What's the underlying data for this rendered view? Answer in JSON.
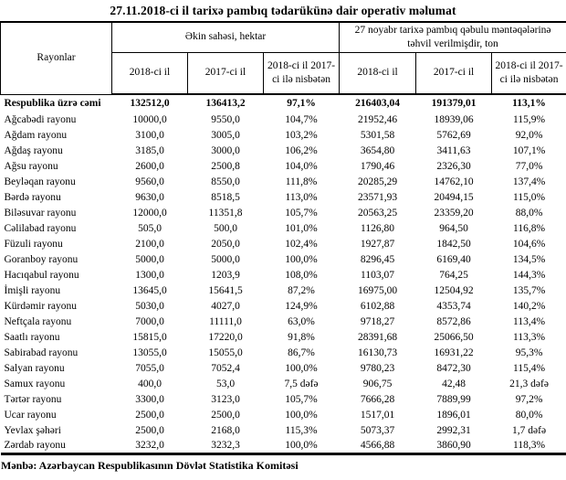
{
  "title": "27.11.2018-ci il tarixə pambıq tədarükünə dair operativ məlumat",
  "source": "Mənbə: Azərbaycan Respublikasının Dövlət Statistika Komitəsi",
  "table": {
    "rayonlar_header": "Rayonlar",
    "group_headers": [
      "Əkin sahəsi, hektar",
      "27 noyabr tarixə pambıq qəbulu məntəqələrinə təhvil verilmişdir, ton"
    ],
    "sub_headers": [
      "2018-ci il",
      "2017-ci il",
      "2018-ci il 2017-ci ilə nisbətən",
      "2018-ci il",
      "2017-ci il",
      "2018-ci il 2017-ci ilə nisbətən"
    ],
    "total_row": [
      "Respublika üzrə cəmi",
      "132512,0",
      "136413,2",
      "97,1%",
      "216403,04",
      "191379,01",
      "113,1%"
    ],
    "rows": [
      [
        "Ağcabədi rayonu",
        "10000,0",
        "9550,0",
        "104,7%",
        "21952,46",
        "18939,06",
        "115,9%"
      ],
      [
        "Ağdam rayonu",
        "3100,0",
        "3005,0",
        "103,2%",
        "5301,58",
        "5762,69",
        "92,0%"
      ],
      [
        "Ağdaş rayonu",
        "3185,0",
        "3000,0",
        "106,2%",
        "3654,80",
        "3411,63",
        "107,1%"
      ],
      [
        "Ağsu rayonu",
        "2600,0",
        "2500,8",
        "104,0%",
        "1790,46",
        "2326,30",
        "77,0%"
      ],
      [
        "Beyləqan rayonu",
        "9560,0",
        "8550,0",
        "111,8%",
        "20285,29",
        "14762,10",
        "137,4%"
      ],
      [
        "Bərdə rayonu",
        "9630,0",
        "8518,5",
        "113,0%",
        "23571,93",
        "20494,15",
        "115,0%"
      ],
      [
        "Biləsuvar rayonu",
        "12000,0",
        "11351,8",
        "105,7%",
        "20563,25",
        "23359,20",
        "88,0%"
      ],
      [
        "Cəlilabad rayonu",
        "505,0",
        "500,0",
        "101,0%",
        "1126,80",
        "964,50",
        "116,8%"
      ],
      [
        "Füzuli rayonu",
        "2100,0",
        "2050,0",
        "102,4%",
        "1927,87",
        "1842,50",
        "104,6%"
      ],
      [
        "Goranboy rayonu",
        "5000,0",
        "5000,0",
        "100,0%",
        "8296,45",
        "6169,40",
        "134,5%"
      ],
      [
        "Hacıqabul rayonu",
        "1300,0",
        "1203,9",
        "108,0%",
        "1103,07",
        "764,25",
        "144,3%"
      ],
      [
        "İmişli rayonu",
        "13645,0",
        "15641,5",
        "87,2%",
        "16975,00",
        "12504,92",
        "135,7%"
      ],
      [
        "Kürdəmir rayonu",
        "5030,0",
        "4027,0",
        "124,9%",
        "6102,88",
        "4353,74",
        "140,2%"
      ],
      [
        "Neftçala rayonu",
        "7000,0",
        "11111,0",
        "63,0%",
        "9718,27",
        "8572,86",
        "113,4%"
      ],
      [
        "Saatlı rayonu",
        "15815,0",
        "17220,0",
        "91,8%",
        "28391,68",
        "25066,50",
        "113,3%"
      ],
      [
        "Sabirabad rayonu",
        "13055,0",
        "15055,0",
        "86,7%",
        "16130,73",
        "16931,22",
        "95,3%"
      ],
      [
        "Salyan rayonu",
        "7055,0",
        "7052,4",
        "100,0%",
        "9780,23",
        "8472,30",
        "115,4%"
      ],
      [
        "Samux rayonu",
        "400,0",
        "53,0",
        "7,5 dəfə",
        "906,75",
        "42,48",
        "21,3 dəfə"
      ],
      [
        "Tərtər rayonu",
        "3300,0",
        "3123,0",
        "105,7%",
        "7666,28",
        "7889,99",
        "97,2%"
      ],
      [
        "Ucar rayonu",
        "2500,0",
        "2500,0",
        "100,0%",
        "1517,01",
        "1896,01",
        "80,0%"
      ],
      [
        "Yevlax şəhəri",
        "2500,0",
        "2168,0",
        "115,3%",
        "5073,37",
        "2992,31",
        "1,7 dəfə"
      ],
      [
        "Zərdab rayonu",
        "3232,0",
        "3232,3",
        "100,0%",
        "4566,88",
        "3860,90",
        "118,3%"
      ]
    ]
  }
}
